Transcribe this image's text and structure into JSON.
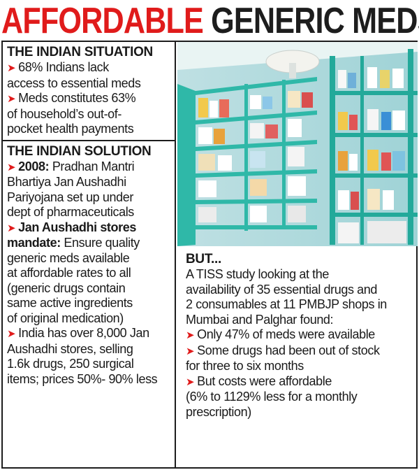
{
  "headline": {
    "part1": "AFFORDABLE",
    "part2": "GENERIC MEDS"
  },
  "situation": {
    "title": "THE INDIAN SITUATION",
    "bullets": [
      {
        "lines": [
          "68% Indians lack",
          "access to essential meds"
        ]
      },
      {
        "lines": [
          "Meds constitutes 63%",
          "of household’s out-of-",
          "pocket health payments"
        ]
      }
    ]
  },
  "solution": {
    "title": "THE INDIAN SOLUTION",
    "b1_bold": "2008:",
    "b1_l1": " Pradhan Mantri",
    "b1_l2": "Bhartiya Jan Aushadhi",
    "b1_l3": "Pariyojana set up under",
    "b1_l4": "dept of pharmaceuticals",
    "b2_bold1": "Jan Aushadhi stores",
    "b2_bold2": "mandate:",
    "b2_l2": " Ensure quality",
    "b2_l3": "generic meds available",
    "b2_l4": "at affordable rates to all",
    "b2_l5": "(generic drugs contain",
    "b2_l6": "same active ingredients",
    "b2_l7": "of original medication)",
    "b3_l1": "India has over 8,000 Jan",
    "b3_l2": "Aushadhi stores, selling",
    "b3_l3": "1.6k drugs, 250 surgical",
    "b3_l4": "items; prices 50%- 90% less"
  },
  "but": {
    "title": "BUT...",
    "intro": [
      "A TISS study looking at the",
      "availability of 35 essential drugs and",
      "2 consumables at 11 PMBJP shops in",
      "Mumbai and Palghar found:"
    ],
    "b1": "Only 47% of meds were available",
    "b2_l1": "Some drugs had been out of stock",
    "b2_l2": "for three to six months",
    "b3_l1": "But costs were affordable",
    "b3_l2": "(6% to 1129% less for a monthly",
    "b3_l3": "prescription)"
  },
  "colors": {
    "accent": "#e01b1b",
    "text": "#1d1d1d",
    "shelf": "#2fb8a8"
  }
}
